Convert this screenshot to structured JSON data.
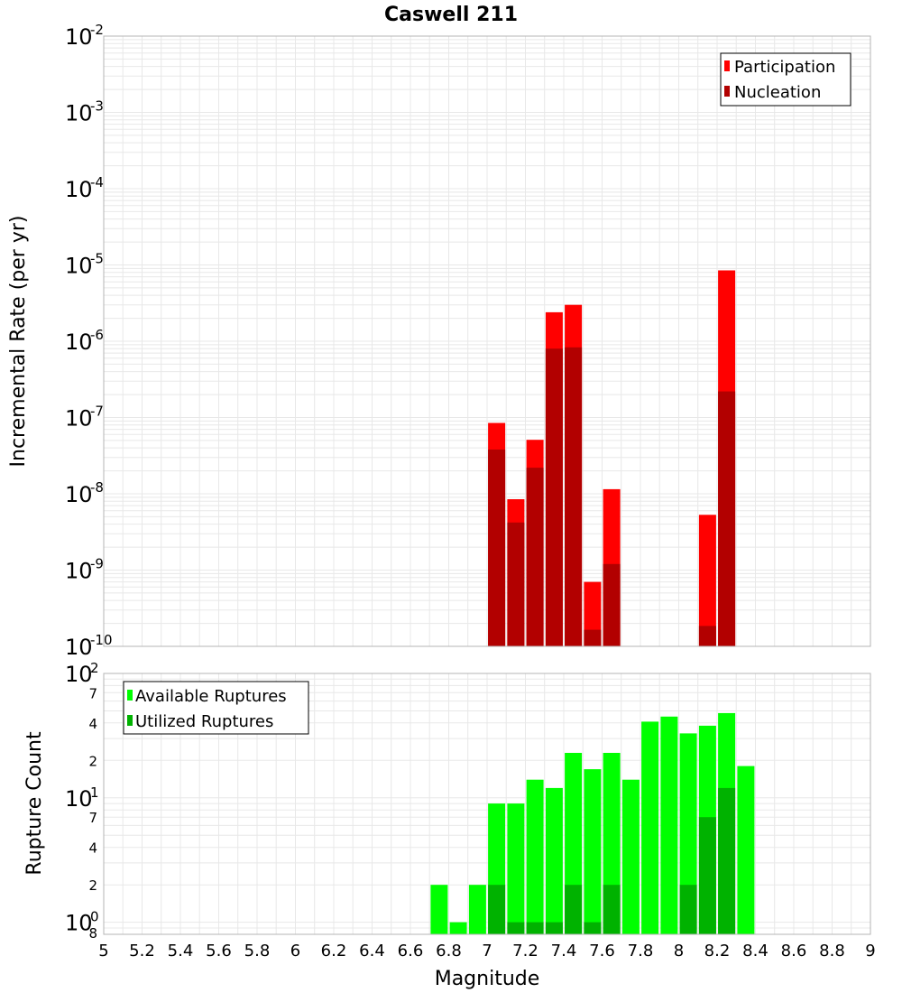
{
  "title": "Caswell 211",
  "colors": {
    "participation": "#ff0000",
    "nucleation": "#b20000",
    "available": "#00ff00",
    "utilized": "#00b200",
    "grid": "#e8e8e8",
    "frame": "#b4b4b4"
  },
  "chart_data": [
    {
      "type": "bar",
      "title": "Caswell 211",
      "xlabel": "Magnitude",
      "ylabel": "Incremental Rate (per yr)",
      "yscale": "log",
      "ylim": [
        1e-10,
        0.01
      ],
      "xlim": [
        5,
        9
      ],
      "grid": true,
      "legend_position": "top-right",
      "x_tick_labels": [
        "5",
        "5.2",
        "5.4",
        "5.6",
        "5.8",
        "6",
        "6.2",
        "6.4",
        "6.6",
        "6.8",
        "7",
        "7.2",
        "7.4",
        "7.6",
        "7.8",
        "8",
        "8.2",
        "8.4",
        "8.6",
        "8.8",
        "9"
      ],
      "y_tick_labels": [
        {
          "base": "10",
          "exp": "-2"
        },
        {
          "base": "10",
          "exp": "-3"
        },
        {
          "base": "10",
          "exp": "-4"
        },
        {
          "base": "10",
          "exp": "-5"
        },
        {
          "base": "10",
          "exp": "-6"
        },
        {
          "base": "10",
          "exp": "-7"
        },
        {
          "base": "10",
          "exp": "-8"
        },
        {
          "base": "10",
          "exp": "-9"
        },
        {
          "base": "10",
          "exp": "-10"
        }
      ],
      "x": [
        7.05,
        7.15,
        7.25,
        7.35,
        7.45,
        7.55,
        7.65,
        8.15,
        8.25
      ],
      "series": [
        {
          "name": "Participation",
          "values": [
            8.5e-08,
            8.5e-09,
            5.1e-08,
            2.4e-06,
            3e-06,
            7e-10,
            1.15e-08,
            5.3e-09,
            8.5e-06
          ]
        },
        {
          "name": "Nucleation",
          "values": [
            3.8e-08,
            4.2e-09,
            2.2e-08,
            8e-07,
            8.3e-07,
            1.65e-10,
            1.2e-09,
            1.85e-10,
            2.2e-07
          ]
        }
      ]
    },
    {
      "type": "bar",
      "xlabel": "Magnitude",
      "ylabel": "Rupture Count",
      "yscale": "log",
      "ylim": [
        0.8,
        100
      ],
      "xlim": [
        5,
        9
      ],
      "grid": true,
      "legend_position": "top-left",
      "y_tick_labels": [
        {
          "base": "10",
          "exp": "2"
        },
        {
          "base": "10",
          "exp": "1"
        },
        {
          "base": "10",
          "exp": "0"
        }
      ],
      "y_minor_labels": [
        "7",
        "4",
        "2",
        "7",
        "4",
        "2",
        "8"
      ],
      "x": [
        6.75,
        6.85,
        6.95,
        7.05,
        7.15,
        7.25,
        7.35,
        7.45,
        7.55,
        7.65,
        7.75,
        7.85,
        7.95,
        8.05,
        8.15,
        8.25,
        8.35
      ],
      "series": [
        {
          "name": "Available Ruptures",
          "values": [
            2,
            1,
            2,
            9,
            9,
            14,
            12,
            23,
            17,
            23,
            14,
            41,
            45,
            33,
            38,
            48,
            18
          ]
        },
        {
          "name": "Utilized Ruptures",
          "values": [
            0,
            0,
            0,
            2,
            1,
            1,
            1,
            2,
            1,
            2,
            0,
            0,
            0,
            2,
            7,
            12,
            0
          ]
        }
      ]
    }
  ]
}
